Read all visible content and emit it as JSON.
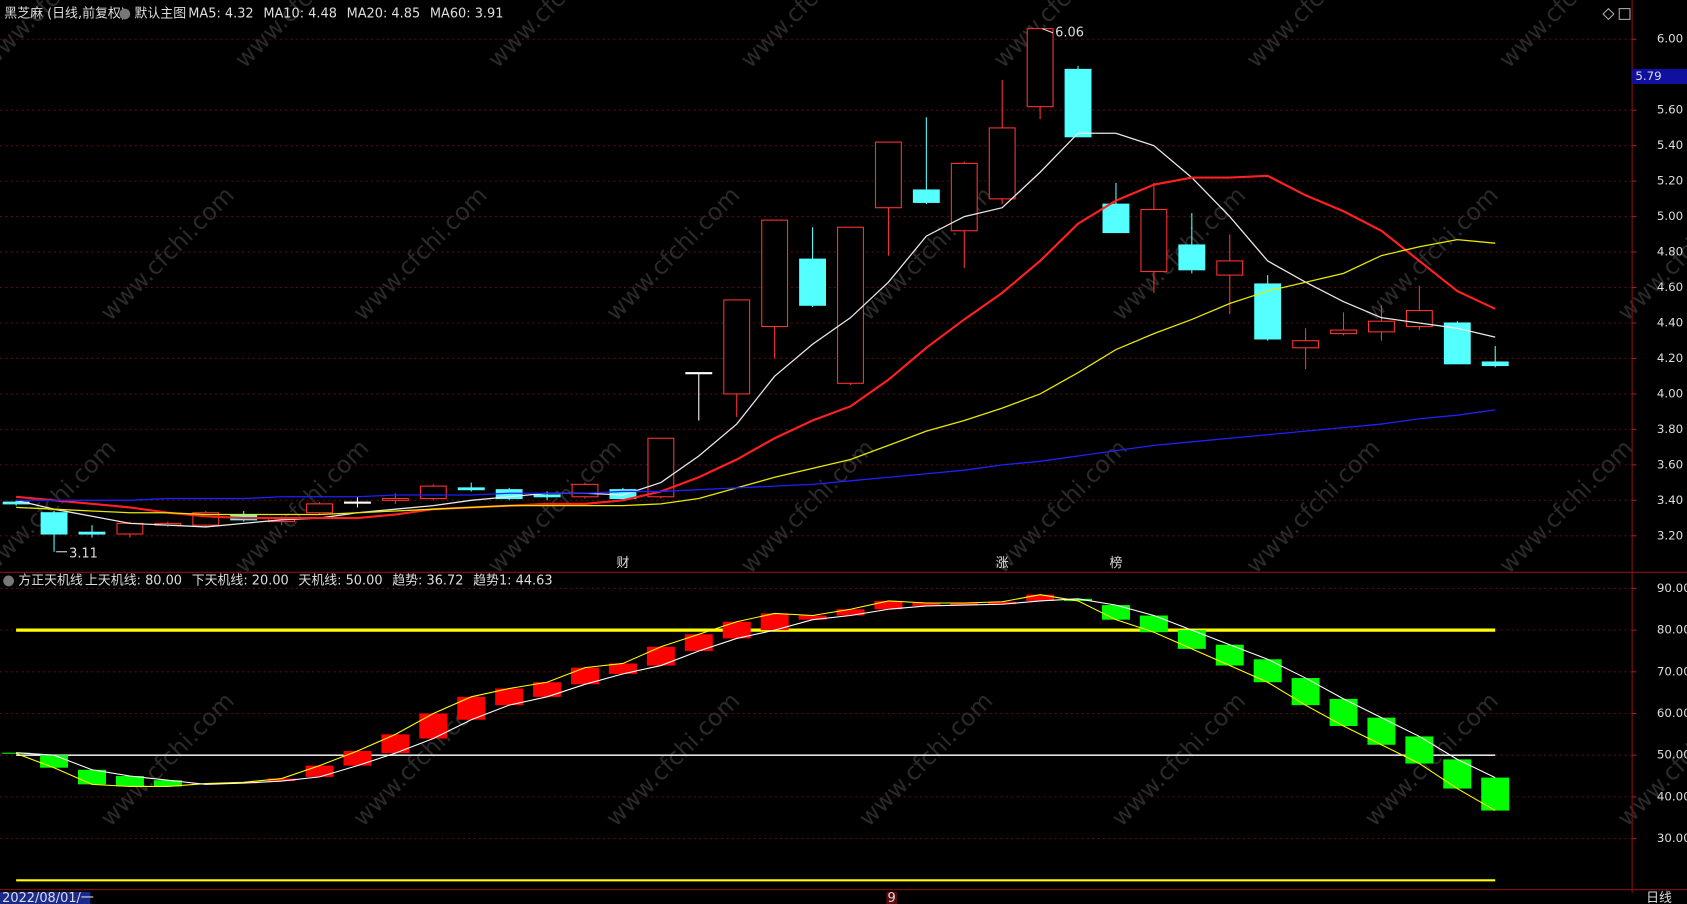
{
  "title": "黑芝麻 (日线,前复权)",
  "subtitle": "默认主图",
  "watermark": "www.cfchi.com",
  "period_label": "日线",
  "chart_data": [
    {
      "type": "candlestick",
      "categories": [
        "2022/08/01/一",
        null,
        null,
        null,
        null,
        null,
        null,
        null,
        null,
        null,
        null,
        null,
        null,
        null,
        null,
        null,
        null,
        null,
        null,
        null,
        null,
        null,
        null,
        "9",
        null,
        null,
        null,
        null,
        null,
        null,
        null,
        null,
        null,
        null,
        null,
        null,
        null,
        null,
        null,
        null
      ],
      "event_labels": [
        null,
        null,
        null,
        null,
        null,
        null,
        null,
        null,
        null,
        null,
        null,
        null,
        null,
        null,
        null,
        null,
        "财",
        null,
        null,
        null,
        null,
        null,
        null,
        null,
        null,
        null,
        "涨",
        null,
        null,
        "榜",
        null,
        null,
        null,
        null,
        null,
        null,
        null,
        null,
        null,
        null
      ],
      "open": [
        3.39,
        3.33,
        3.22,
        3.21,
        3.26,
        3.26,
        3.32,
        3.28,
        3.33,
        3.39,
        3.4,
        3.41,
        3.47,
        3.46,
        3.43,
        3.42,
        3.46,
        3.42,
        4.12,
        4.0,
        4.38,
        4.76,
        4.06,
        5.05,
        5.15,
        4.92,
        5.1,
        5.62,
        5.83,
        5.07,
        4.69,
        4.84,
        4.67,
        4.62,
        4.26,
        4.34,
        4.35,
        4.38,
        4.4,
        4.18
      ],
      "high": [
        3.4,
        3.34,
        3.26,
        3.28,
        3.28,
        3.34,
        3.34,
        3.31,
        3.39,
        3.42,
        3.44,
        3.49,
        3.5,
        3.47,
        3.45,
        3.5,
        3.47,
        3.75,
        4.12,
        4.53,
        4.98,
        4.94,
        4.94,
        5.42,
        5.56,
        5.31,
        5.77,
        6.06,
        5.85,
        5.19,
        5.19,
        5.02,
        4.9,
        4.67,
        4.37,
        4.46,
        4.5,
        4.61,
        4.41,
        4.27
      ],
      "low": [
        3.37,
        3.11,
        3.19,
        3.19,
        3.25,
        3.25,
        3.28,
        3.26,
        3.32,
        3.36,
        3.38,
        3.4,
        3.45,
        3.4,
        3.4,
        3.41,
        3.4,
        3.41,
        3.85,
        3.87,
        4.2,
        4.49,
        4.05,
        4.78,
        5.07,
        4.71,
        5.07,
        5.55,
        5.45,
        4.91,
        4.57,
        4.68,
        4.45,
        4.3,
        4.14,
        4.33,
        4.3,
        4.36,
        4.17,
        4.15
      ],
      "close": [
        3.38,
        3.21,
        3.21,
        3.27,
        3.27,
        3.33,
        3.29,
        3.3,
        3.38,
        3.39,
        3.41,
        3.48,
        3.46,
        3.41,
        3.42,
        3.49,
        3.41,
        3.75,
        4.12,
        4.53,
        4.98,
        4.5,
        4.94,
        5.42,
        5.08,
        5.3,
        5.5,
        6.06,
        5.45,
        4.91,
        5.04,
        4.7,
        4.75,
        4.31,
        4.3,
        4.36,
        4.41,
        4.47,
        4.17,
        4.16
      ],
      "up_color": "#ff3232",
      "down_color": "#54ffff",
      "flat_color": "#ffffff",
      "series": [
        {
          "name": "MA5: 4.32",
          "color": "#e8e8e8",
          "values": [
            3.4,
            3.35,
            3.31,
            3.27,
            3.26,
            3.25,
            3.27,
            3.29,
            3.3,
            3.33,
            3.35,
            3.37,
            3.4,
            3.42,
            3.44,
            3.44,
            3.43,
            3.5,
            3.65,
            3.83,
            4.1,
            4.28,
            4.43,
            4.63,
            4.89,
            5.0,
            5.05,
            5.25,
            5.47,
            5.47,
            5.4,
            5.22,
            5.0,
            4.75,
            4.63,
            4.52,
            4.43,
            4.4,
            4.37,
            4.32
          ]
        },
        {
          "name": "MA10: 4.48",
          "color": "#ff2020",
          "values": [
            3.42,
            3.4,
            3.38,
            3.36,
            3.33,
            3.31,
            3.3,
            3.3,
            3.3,
            3.3,
            3.32,
            3.35,
            3.36,
            3.37,
            3.38,
            3.38,
            3.4,
            3.45,
            3.53,
            3.63,
            3.75,
            3.85,
            3.93,
            4.08,
            4.26,
            4.42,
            4.57,
            4.75,
            4.96,
            5.09,
            5.18,
            5.22,
            5.22,
            5.23,
            5.12,
            5.03,
            4.92,
            4.75,
            4.58,
            4.48
          ]
        },
        {
          "name": "MA20: 4.85",
          "color": "#e8e800",
          "values": [
            3.36,
            3.35,
            3.34,
            3.33,
            3.33,
            3.32,
            3.32,
            3.32,
            3.32,
            3.33,
            3.34,
            3.35,
            3.36,
            3.37,
            3.37,
            3.37,
            3.37,
            3.38,
            3.41,
            3.47,
            3.53,
            3.58,
            3.63,
            3.71,
            3.79,
            3.85,
            3.92,
            4.0,
            4.12,
            4.25,
            4.34,
            4.42,
            4.51,
            4.58,
            4.63,
            4.68,
            4.78,
            4.83,
            4.87,
            4.85
          ]
        },
        {
          "name": "MA60: 3.91",
          "color": "#2020ff",
          "values": [
            3.4,
            3.4,
            3.4,
            3.4,
            3.41,
            3.41,
            3.41,
            3.42,
            3.42,
            3.42,
            3.43,
            3.43,
            3.43,
            3.44,
            3.44,
            3.44,
            3.45,
            3.45,
            3.46,
            3.47,
            3.48,
            3.49,
            3.51,
            3.53,
            3.55,
            3.57,
            3.6,
            3.62,
            3.65,
            3.68,
            3.71,
            3.73,
            3.75,
            3.77,
            3.79,
            3.81,
            3.83,
            3.86,
            3.88,
            3.91
          ]
        }
      ],
      "ylim": [
        3.0,
        6.1
      ],
      "yticks": [
        {
          "value": 6.0,
          "label": "6.00"
        },
        {
          "value": 5.6,
          "label": "5.60"
        },
        {
          "value": 5.4,
          "label": "5.40"
        },
        {
          "value": 5.2,
          "label": "5.20"
        },
        {
          "value": 5.0,
          "label": "5.00"
        },
        {
          "value": 4.8,
          "label": "4.80"
        },
        {
          "value": 4.6,
          "label": "4.60"
        },
        {
          "value": 4.4,
          "label": "4.40"
        },
        {
          "value": 4.2,
          "label": "4.20"
        },
        {
          "value": 4.0,
          "label": "4.00"
        },
        {
          "value": 3.8,
          "label": "3.80"
        },
        {
          "value": 3.6,
          "label": "3.60"
        },
        {
          "value": 3.4,
          "label": "3.40"
        },
        {
          "value": 3.2,
          "label": "3.20"
        }
      ],
      "cursor_price": 5.79,
      "grid": true
    },
    {
      "type": "band",
      "title": "方正天机线",
      "reference_lines": [
        {
          "name": "上天机线: 80.00",
          "value": 80,
          "color": "#ffff00"
        },
        {
          "name": "下天机线: 20.00",
          "value": 20,
          "color": "#ffff00"
        },
        {
          "name": "天机线: 50.00",
          "value": 50,
          "color": "#e0e0e0"
        }
      ],
      "series": [
        {
          "name": "趋势: 36.72",
          "color": "#ffff00",
          "values": [
            50.4,
            47,
            43,
            42.5,
            42.5,
            43.2,
            43.5,
            44.4,
            47.5,
            51,
            55,
            60,
            64,
            66,
            67.5,
            71,
            72,
            76,
            79,
            82,
            84,
            83.5,
            85,
            87,
            86.5,
            86.5,
            86.8,
            88.5,
            87,
            82.5,
            79.5,
            75.5,
            71.5,
            67.5,
            62,
            57,
            52.5,
            48,
            42,
            36.72
          ]
        },
        {
          "name": "趋势1: 44.63",
          "color": "#ffffff",
          "values": [
            50.6,
            50,
            46.5,
            45,
            44,
            43,
            43.3,
            43.8,
            44.8,
            47.5,
            50.5,
            54,
            58.5,
            62,
            64,
            67,
            69.5,
            71.5,
            75,
            78,
            80,
            82.5,
            83.5,
            85,
            85.8,
            86,
            86.2,
            87,
            87.5,
            86,
            83.5,
            80,
            76.5,
            73,
            68.5,
            63.5,
            59,
            54.5,
            49,
            44.63
          ]
        }
      ],
      "up_color": "#ff0000",
      "down_color": "#00ff00",
      "ylim": [
        18,
        93.6
      ],
      "yticks": [
        {
          "value": 90,
          "label": "90.00"
        },
        {
          "value": 80,
          "label": "80.00"
        },
        {
          "value": 70,
          "label": "70.00"
        },
        {
          "value": 60,
          "label": "60.00"
        },
        {
          "value": 50,
          "label": "50.00"
        },
        {
          "value": 40,
          "label": "40.00"
        },
        {
          "value": 30,
          "label": "30.00"
        }
      ],
      "grid": true
    }
  ]
}
